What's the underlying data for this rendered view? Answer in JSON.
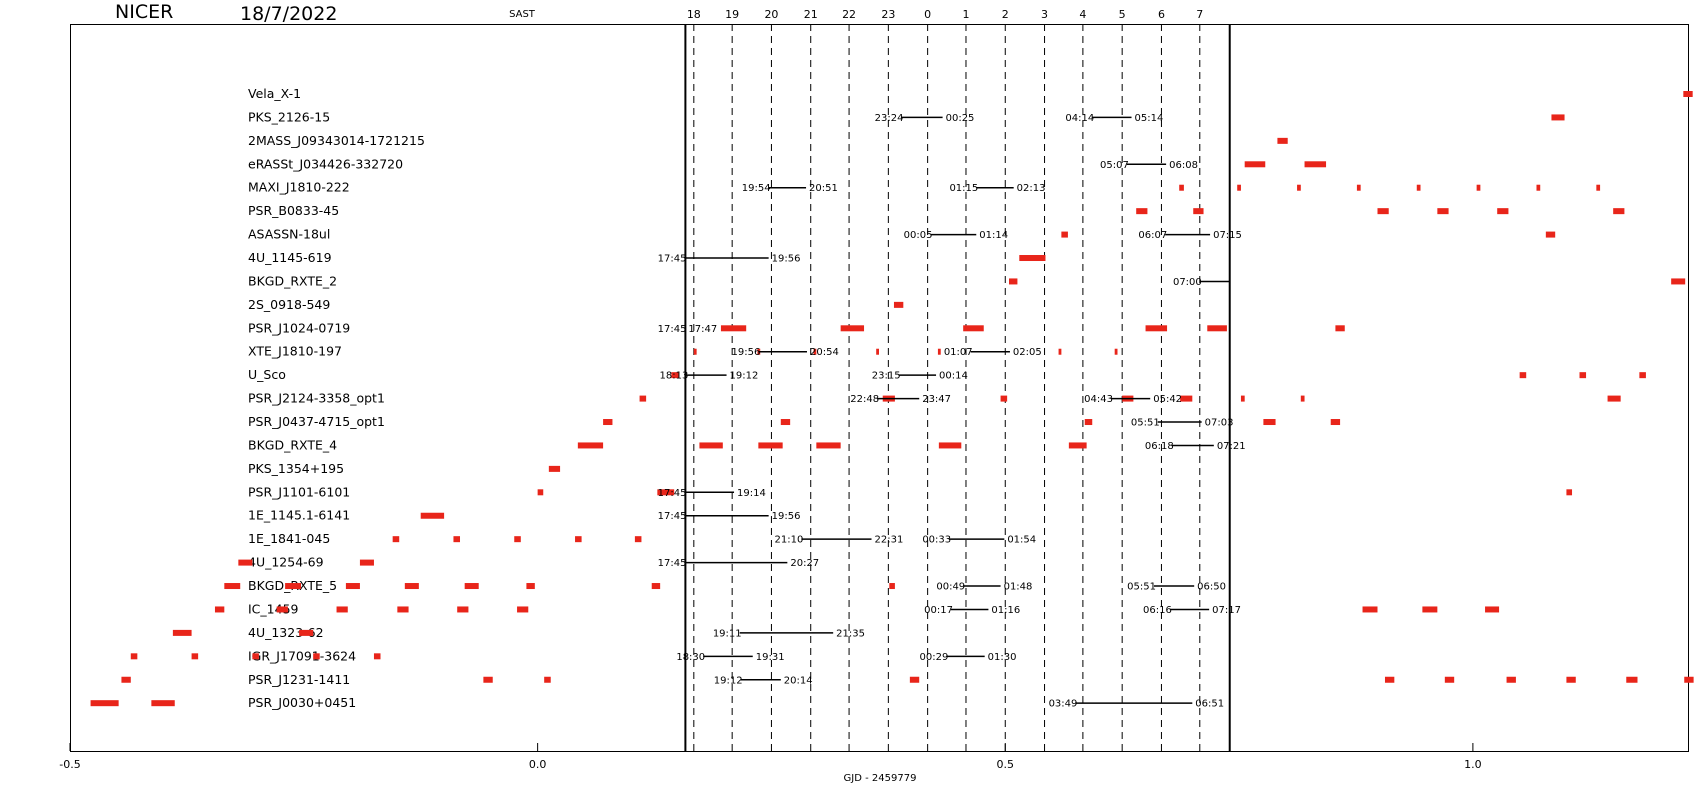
{
  "header": {
    "mission": "NICER",
    "date": "18/7/2022",
    "timezone": "SAST"
  },
  "colors": {
    "window": "#e8251a",
    "axis": "#000000"
  },
  "chart_data": {
    "type": "timeline",
    "xlabel": "GJD - 2459779",
    "xlim": [
      -0.5,
      1.23
    ],
    "x_ticks": [
      {
        "v": -0.5,
        "label": "-0.5"
      },
      {
        "v": 0.0,
        "label": "0.0"
      },
      {
        "v": 0.5,
        "label": "0.5"
      },
      {
        "v": 1.0,
        "label": "1.0"
      }
    ],
    "night": [
      0.158,
      0.74
    ],
    "hours": [
      {
        "label": "18",
        "x": 0.167
      },
      {
        "label": "19",
        "x": 0.208
      },
      {
        "label": "20",
        "x": 0.25
      },
      {
        "label": "21",
        "x": 0.292
      },
      {
        "label": "22",
        "x": 0.333
      },
      {
        "label": "23",
        "x": 0.375
      },
      {
        "label": "0",
        "x": 0.417
      },
      {
        "label": "1",
        "x": 0.458
      },
      {
        "label": "2",
        "x": 0.5
      },
      {
        "label": "3",
        "x": 0.542
      },
      {
        "label": "4",
        "x": 0.583
      },
      {
        "label": "5",
        "x": 0.625
      },
      {
        "label": "6",
        "x": 0.667
      },
      {
        "label": "7",
        "x": 0.708
      }
    ],
    "targets": [
      {
        "name": "Vela_X-1",
        "windows": [
          [
            1.225,
            1.235
          ]
        ],
        "obs": []
      },
      {
        "name": "PKS_2126-15",
        "windows": [
          [
            1.084,
            1.098
          ]
        ],
        "obs": [
          {
            "s": 0.389,
            "e": 0.433,
            "l1": "23:24",
            "l2": "00:25"
          },
          {
            "s": 0.593,
            "e": 0.635,
            "l1": "04:14",
            "l2": "05:14"
          }
        ]
      },
      {
        "name": "2MASS_J09343014-1721215",
        "windows": [
          [
            0.791,
            0.802
          ]
        ],
        "obs": []
      },
      {
        "name": "eRASSt_J034426-332720",
        "windows": [
          [
            0.756,
            0.778
          ],
          [
            0.82,
            0.843
          ]
        ],
        "obs": [
          {
            "s": 0.63,
            "e": 0.672,
            "l1": "05:07",
            "l2": "06:08"
          }
        ]
      },
      {
        "name": "MAXI_J1810-222",
        "windows": [
          [
            0.686,
            0.691
          ],
          [
            0.748,
            0.752
          ],
          [
            0.812,
            0.816
          ],
          [
            0.876,
            0.88
          ],
          [
            0.94,
            0.944
          ],
          [
            1.004,
            1.008
          ],
          [
            1.068,
            1.072
          ],
          [
            1.132,
            1.136
          ]
        ],
        "obs": [
          {
            "s": 0.247,
            "e": 0.287,
            "l1": "19:54",
            "l2": "20:51"
          },
          {
            "s": 0.469,
            "e": 0.509,
            "l1": "01:15",
            "l2": "02:13"
          }
        ]
      },
      {
        "name": "PSR_B0833-45",
        "windows": [
          [
            0.64,
            0.652
          ],
          [
            0.701,
            0.712
          ],
          [
            0.898,
            0.91
          ],
          [
            0.962,
            0.974
          ],
          [
            1.026,
            1.038
          ],
          [
            1.15,
            1.162
          ]
        ],
        "obs": []
      },
      {
        "name": "ASASSN-18ul",
        "windows": [
          [
            0.56,
            0.567
          ],
          [
            1.078,
            1.088
          ]
        ],
        "obs": [
          {
            "s": 0.42,
            "e": 0.469,
            "l1": "00:05",
            "l2": "01:14"
          },
          {
            "s": 0.671,
            "e": 0.719,
            "l1": "06:07",
            "l2": "07:15"
          }
        ]
      },
      {
        "name": "4U_1145-619",
        "windows": [
          [
            0.515,
            0.543
          ]
        ],
        "obs": [
          {
            "s": 0.157,
            "e": 0.247,
            "l1": "17:45",
            "l2": "19:56"
          }
        ]
      },
      {
        "name": "BKGD_RXTE_2",
        "windows": [
          [
            0.504,
            0.513
          ],
          [
            1.212,
            1.227
          ]
        ],
        "obs": [
          {
            "s": 0.708,
            "e": 0.74,
            "l1": "07:00",
            "l2": ""
          }
        ]
      },
      {
        "name": "2S_0918-549",
        "windows": [
          [
            0.381,
            0.391
          ]
        ],
        "obs": []
      },
      {
        "name": "PSR_J1024-0719",
        "windows": [
          [
            0.196,
            0.223
          ],
          [
            0.324,
            0.349
          ],
          [
            0.455,
            0.477
          ],
          [
            0.65,
            0.673
          ],
          [
            0.716,
            0.737
          ],
          [
            0.853,
            0.863
          ]
        ],
        "obs": [
          {
            "s": 0.157,
            "e": 0.158,
            "l1": "17:45",
            "l2": "17:47"
          }
        ]
      },
      {
        "name": "XTE_J1810-197",
        "windows": [
          [
            0.167,
            0.17
          ],
          [
            0.235,
            0.238
          ],
          [
            0.295,
            0.298
          ],
          [
            0.362,
            0.365
          ],
          [
            0.428,
            0.431
          ],
          [
            0.557,
            0.56
          ],
          [
            0.617,
            0.62
          ]
        ],
        "obs": [
          {
            "s": 0.236,
            "e": 0.288,
            "l1": "19:56",
            "l2": "20:54"
          },
          {
            "s": 0.463,
            "e": 0.505,
            "l1": "01:07",
            "l2": "02:05"
          }
        ]
      },
      {
        "name": "U_Sco",
        "windows": [
          [
            0.143,
            0.151
          ],
          [
            1.05,
            1.057
          ],
          [
            1.114,
            1.121
          ],
          [
            1.178,
            1.185
          ]
        ],
        "obs": [
          {
            "s": 0.159,
            "e": 0.202,
            "l1": "18:13",
            "l2": "19:12"
          },
          {
            "s": 0.386,
            "e": 0.426,
            "l1": "23:15",
            "l2": "00:14"
          }
        ]
      },
      {
        "name": "PSR_J2124-3358_opt1",
        "windows": [
          [
            0.109,
            0.116
          ],
          [
            0.369,
            0.382
          ],
          [
            0.495,
            0.502
          ],
          [
            0.625,
            0.637
          ],
          [
            0.687,
            0.7
          ],
          [
            0.752,
            0.756
          ],
          [
            0.816,
            0.82
          ],
          [
            1.144,
            1.158
          ]
        ],
        "obs": [
          {
            "s": 0.363,
            "e": 0.408,
            "l1": "22:48",
            "l2": "23:47"
          },
          {
            "s": 0.613,
            "e": 0.655,
            "l1": "04:43",
            "l2": "05:42"
          }
        ]
      },
      {
        "name": "PSR_J0437-4715_opt1",
        "windows": [
          [
            0.07,
            0.08
          ],
          [
            0.26,
            0.27
          ],
          [
            0.585,
            0.593
          ],
          [
            0.776,
            0.789
          ],
          [
            0.848,
            0.858
          ]
        ],
        "obs": [
          {
            "s": 0.663,
            "e": 0.71,
            "l1": "05:51",
            "l2": "07:03"
          }
        ]
      },
      {
        "name": "BKGD_RXTE_4",
        "windows": [
          [
            0.043,
            0.07
          ],
          [
            0.173,
            0.198
          ],
          [
            0.236,
            0.262
          ],
          [
            0.298,
            0.324
          ],
          [
            0.429,
            0.453
          ],
          [
            0.568,
            0.587
          ]
        ],
        "obs": [
          {
            "s": 0.678,
            "e": 0.723,
            "l1": "06:18",
            "l2": "07:21"
          }
        ]
      },
      {
        "name": "PKS_1354+195",
        "windows": [
          [
            0.012,
            0.024
          ]
        ],
        "obs": []
      },
      {
        "name": "PSR_J1101-6101",
        "windows": [
          [
            0.0,
            0.006
          ],
          [
            0.128,
            0.146
          ],
          [
            1.1,
            1.106
          ]
        ],
        "obs": [
          {
            "s": 0.157,
            "e": 0.21,
            "l1": "17:45",
            "l2": "19:14"
          }
        ]
      },
      {
        "name": "1E_1145.1-6141",
        "windows": [
          [
            -0.125,
            -0.1
          ]
        ],
        "obs": [
          {
            "s": 0.157,
            "e": 0.247,
            "l1": "17:45",
            "l2": "19:56"
          }
        ]
      },
      {
        "name": "1E_1841-045",
        "windows": [
          [
            -0.155,
            -0.148
          ],
          [
            -0.09,
            -0.083
          ],
          [
            -0.025,
            -0.018
          ],
          [
            0.04,
            0.047
          ],
          [
            0.104,
            0.111
          ]
        ],
        "obs": [
          {
            "s": 0.282,
            "e": 0.357,
            "l1": "21:10",
            "l2": "22:31"
          },
          {
            "s": 0.44,
            "e": 0.499,
            "l1": "00:33",
            "l2": "01:54"
          }
        ]
      },
      {
        "name": "4U_1254-69",
        "windows": [
          [
            -0.32,
            -0.305
          ],
          [
            -0.19,
            -0.175
          ]
        ],
        "obs": [
          {
            "s": 0.157,
            "e": 0.267,
            "l1": "17:45",
            "l2": "20:27"
          }
        ]
      },
      {
        "name": "BKGD_RXTE_5",
        "windows": [
          [
            -0.335,
            -0.318
          ],
          [
            -0.27,
            -0.253
          ],
          [
            -0.205,
            -0.19
          ],
          [
            -0.142,
            -0.127
          ],
          [
            -0.078,
            -0.063
          ],
          [
            -0.012,
            -0.003
          ],
          [
            0.122,
            0.131
          ],
          [
            0.376,
            0.382
          ]
        ],
        "obs": [
          {
            "s": 0.455,
            "e": 0.495,
            "l1": "00:49",
            "l2": "01:48"
          },
          {
            "s": 0.659,
            "e": 0.702,
            "l1": "05:51",
            "l2": "06:50"
          }
        ]
      },
      {
        "name": "IC_1459",
        "windows": [
          [
            -0.345,
            -0.335
          ],
          [
            -0.279,
            -0.267
          ],
          [
            -0.215,
            -0.203
          ],
          [
            -0.15,
            -0.138
          ],
          [
            -0.086,
            -0.074
          ],
          [
            -0.022,
            -0.01
          ],
          [
            0.882,
            0.898
          ],
          [
            0.946,
            0.962
          ],
          [
            1.013,
            1.028
          ]
        ],
        "obs": [
          {
            "s": 0.442,
            "e": 0.482,
            "l1": "00:17",
            "l2": "01:16"
          },
          {
            "s": 0.676,
            "e": 0.718,
            "l1": "06:16",
            "l2": "07:17"
          }
        ]
      },
      {
        "name": "4U_1323-62",
        "windows": [
          [
            -0.39,
            -0.37
          ],
          [
            -0.255,
            -0.24
          ]
        ],
        "obs": [
          {
            "s": 0.216,
            "e": 0.316,
            "l1": "19:11",
            "l2": "21:35"
          }
        ]
      },
      {
        "name": "IGR_J17091-3624",
        "windows": [
          [
            -0.435,
            -0.428
          ],
          [
            -0.37,
            -0.363
          ],
          [
            -0.305,
            -0.298
          ],
          [
            -0.24,
            -0.233
          ],
          [
            -0.175,
            -0.168
          ]
        ],
        "obs": [
          {
            "s": 0.177,
            "e": 0.23,
            "l1": "18:30",
            "l2": "19:31"
          },
          {
            "s": 0.437,
            "e": 0.478,
            "l1": "00:29",
            "l2": "01:30"
          }
        ]
      },
      {
        "name": "PSR_J1231-1411",
        "windows": [
          [
            -0.445,
            -0.435
          ],
          [
            -0.058,
            -0.048
          ],
          [
            0.007,
            0.014
          ],
          [
            0.398,
            0.408
          ],
          [
            0.906,
            0.916
          ],
          [
            0.97,
            0.98
          ],
          [
            1.036,
            1.046
          ],
          [
            1.1,
            1.11
          ],
          [
            1.164,
            1.176
          ],
          [
            1.226,
            1.236
          ]
        ],
        "obs": [
          {
            "s": 0.217,
            "e": 0.26,
            "l1": "19:12",
            "l2": "20:14"
          }
        ]
      },
      {
        "name": "PSR_J0030+0451",
        "windows": [
          [
            -0.478,
            -0.448
          ],
          [
            -0.413,
            -0.388
          ]
        ],
        "obs": [
          {
            "s": 0.575,
            "e": 0.7,
            "l1": "03:49",
            "l2": "06:51"
          }
        ]
      }
    ]
  }
}
